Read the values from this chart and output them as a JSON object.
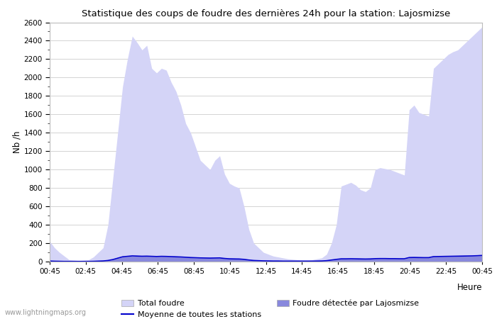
{
  "title": "Statistique des coups de foudre des dernières 24h pour la station: Lajosmizse",
  "xlabel": "Heure",
  "ylabel": "Nb /h",
  "xlim_labels": [
    "00:45",
    "02:45",
    "04:45",
    "06:45",
    "08:45",
    "10:45",
    "12:45",
    "14:45",
    "16:45",
    "18:45",
    "20:45",
    "22:45",
    "00:45"
  ],
  "ylim": [
    0,
    2600
  ],
  "yticks": [
    0,
    200,
    400,
    600,
    800,
    1000,
    1200,
    1400,
    1600,
    1800,
    2000,
    2200,
    2400,
    2600
  ],
  "bg_color": "#ffffff",
  "plot_bg_color": "#ffffff",
  "grid_color": "#cccccc",
  "fill_color_total": "#d4d4f7",
  "fill_color_detected": "#8888dd",
  "line_color_mean": "#0000cc",
  "watermark": "www.lightningmaps.org",
  "legend_row1": [
    "Total foudre",
    "Moyenne de toutes les stations"
  ],
  "legend_row2": [
    "Foudre détectée par Lajosmizse"
  ],
  "total_foudre": [
    220,
    150,
    100,
    60,
    20,
    15,
    10,
    15,
    20,
    50,
    100,
    150,
    400,
    900,
    1400,
    1900,
    2200,
    2450,
    2380,
    2300,
    2350,
    2100,
    2050,
    2100,
    2080,
    1950,
    1850,
    1700,
    1500,
    1400,
    1250,
    1100,
    1050,
    1000,
    1100,
    1150,
    950,
    850,
    820,
    800,
    600,
    350,
    200,
    150,
    100,
    80,
    60,
    50,
    40,
    30,
    25,
    20,
    15,
    15,
    20,
    30,
    40,
    80,
    200,
    400,
    820,
    840,
    860,
    830,
    780,
    760,
    800,
    1000,
    1020,
    1010,
    1000,
    980,
    960,
    940,
    1650,
    1700,
    1620,
    1600,
    1580,
    2100,
    2150,
    2200,
    2250,
    2280,
    2300,
    2350,
    2400,
    2450,
    2500,
    2550
  ],
  "detected": [
    5,
    3,
    2,
    1,
    1,
    1,
    1,
    1,
    1,
    2,
    3,
    5,
    10,
    20,
    35,
    50,
    55,
    60,
    58,
    56,
    57,
    55,
    53,
    55,
    54,
    52,
    50,
    48,
    45,
    42,
    40,
    38,
    37,
    36,
    37,
    38,
    32,
    28,
    27,
    26,
    22,
    15,
    10,
    8,
    6,
    5,
    4,
    4,
    3,
    3,
    3,
    3,
    3,
    3,
    3,
    4,
    5,
    8,
    15,
    22,
    28,
    28,
    29,
    28,
    27,
    26,
    27,
    30,
    31,
    31,
    30,
    30,
    29,
    29,
    42,
    43,
    42,
    41,
    41,
    52,
    53,
    54,
    55,
    56,
    57,
    58,
    59,
    60,
    62,
    65
  ],
  "mean_all": [
    6,
    4,
    3,
    2,
    2,
    2,
    2,
    2,
    2,
    3,
    5,
    7,
    12,
    22,
    37,
    52,
    57,
    62,
    60,
    58,
    59,
    57,
    55,
    57,
    56,
    54,
    52,
    50,
    47,
    44,
    42,
    40,
    39,
    38,
    39,
    40,
    34,
    30,
    29,
    28,
    24,
    17,
    12,
    10,
    8,
    7,
    6,
    6,
    5,
    5,
    5,
    5,
    5,
    5,
    5,
    6,
    7,
    10,
    17,
    24,
    30,
    30,
    31,
    30,
    29,
    28,
    29,
    32,
    33,
    33,
    32,
    32,
    31,
    31,
    44,
    45,
    44,
    43,
    43,
    54,
    55,
    56,
    57,
    58,
    59,
    60,
    61,
    62,
    64,
    67
  ]
}
